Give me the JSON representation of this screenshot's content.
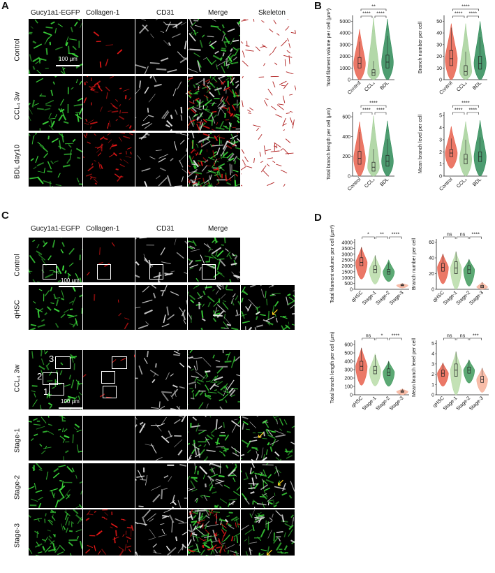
{
  "panel_labels": {
    "a": "A",
    "b": "B",
    "c": "C",
    "d": "D"
  },
  "panel_a": {
    "columns": [
      "Gucy1a1-EGFP",
      "Collagen-1",
      "CD31",
      "Merge",
      "Skeleton"
    ],
    "rows": [
      "Control",
      "CCL₄ 3w",
      "BDL day10"
    ],
    "scale_bar": "100 μm"
  },
  "panel_c": {
    "columns": [
      "Gucy1a1-EGFP",
      "Collagen-1",
      "CD31",
      "Merge"
    ],
    "rows": [
      "Control",
      "qHSC",
      "CCL₄ 3w",
      "Stage-1",
      "Stage-2",
      "Stage-3"
    ],
    "scale_bar": "100 μm",
    "ccl4_box_labels": [
      "3",
      "2",
      "1"
    ]
  },
  "colors": {
    "control": "#e8604c",
    "ccl4": "#a6d19a",
    "bdl": "#2e8b57",
    "qhsc": "#e8604c",
    "stage1": "#b8dca8",
    "stage2": "#3f9a5c",
    "stage3": "#f6b19a",
    "egfp": "#3bd93b",
    "collagen": "#e81818",
    "cd31": "#e8e8e8"
  },
  "chart_data": [
    {
      "type": "violin",
      "panel": "B",
      "ylabel": "Total filament volume per cell (μm³)",
      "categories": [
        "Control",
        "CCL₄",
        "BDL"
      ],
      "yticks": [
        0,
        1000,
        2000,
        3000,
        4000,
        5000
      ],
      "ylim": [
        0,
        5500
      ],
      "medians": [
        1400,
        600,
        1500
      ],
      "q1": [
        1000,
        350,
        1000
      ],
      "q3": [
        1900,
        850,
        2100
      ],
      "max": [
        4300,
        5300,
        5200
      ],
      "significance": [
        {
          "pair": [
            "Control",
            "BDL"
          ],
          "label": "**"
        },
        {
          "pair": [
            "Control",
            "CCL₄"
          ],
          "label": "****"
        },
        {
          "pair": [
            "CCL₄",
            "BDL"
          ],
          "label": "****"
        }
      ]
    },
    {
      "type": "violin",
      "panel": "B",
      "ylabel": "Branch number per cell",
      "categories": [
        "Control",
        "CCL₄",
        "BDL"
      ],
      "yticks": [
        0,
        10,
        20,
        30,
        40,
        50
      ],
      "ylim": [
        0,
        55
      ],
      "medians": [
        18,
        7,
        14
      ],
      "q1": [
        12,
        4,
        9
      ],
      "q3": [
        25,
        12,
        20
      ],
      "max": [
        48,
        48,
        50
      ],
      "significance": [
        {
          "pair": [
            "Control",
            "BDL"
          ],
          "label": "****"
        },
        {
          "pair": [
            "Control",
            "CCL₄"
          ],
          "label": "****"
        },
        {
          "pair": [
            "CCL₄",
            "BDL"
          ],
          "label": "****"
        }
      ]
    },
    {
      "type": "violin",
      "panel": "B",
      "ylabel": "Total branch length per cell (μm)",
      "categories": [
        "Control",
        "CCL₄",
        "BDL"
      ],
      "yticks": [
        0,
        200,
        400,
        600
      ],
      "ylim": [
        0,
        650
      ],
      "medians": [
        180,
        90,
        150
      ],
      "q1": [
        120,
        50,
        100
      ],
      "q3": [
        250,
        140,
        210
      ],
      "max": [
        550,
        610,
        560
      ],
      "significance": [
        {
          "pair": [
            "Control",
            "BDL"
          ],
          "label": "****"
        },
        {
          "pair": [
            "Control",
            "CCL₄"
          ],
          "label": "****"
        },
        {
          "pair": [
            "CCL₄",
            "BDL"
          ],
          "label": "****"
        }
      ]
    },
    {
      "type": "violin",
      "panel": "B",
      "ylabel": "Mean branch level per cell",
      "categories": [
        "Control",
        "CCL₄",
        "BDL"
      ],
      "yticks": [
        0,
        1,
        2,
        3,
        4,
        5
      ],
      "ylim": [
        0,
        5.3
      ],
      "medians": [
        1.9,
        1.4,
        1.6
      ],
      "q1": [
        1.6,
        1.0,
        1.2
      ],
      "q3": [
        2.2,
        1.8,
        2.0
      ],
      "max": [
        4.1,
        4.5,
        4.6
      ],
      "significance": [
        {
          "pair": [
            "Control",
            "BDL"
          ],
          "label": "****"
        },
        {
          "pair": [
            "Control",
            "CCL₄"
          ],
          "label": "****"
        },
        {
          "pair": [
            "CCL₄",
            "BDL"
          ],
          "label": "****"
        }
      ]
    },
    {
      "type": "violin",
      "panel": "D",
      "ylabel": "Total filament volume per cell (μm³)",
      "categories": [
        "qHSC",
        "Stage-1",
        "Stage-2",
        "Stage-3"
      ],
      "yticks": [
        0,
        500,
        1000,
        1500,
        2000,
        2500,
        3000,
        3500,
        4000
      ],
      "ylim": [
        0,
        4300
      ],
      "medians": [
        2300,
        1700,
        1500,
        350
      ],
      "q1": [
        2000,
        1400,
        1300,
        300
      ],
      "q3": [
        2700,
        2000,
        1700,
        420
      ],
      "max": [
        3600,
        2900,
        2500,
        500
      ],
      "significance": [
        {
          "pair": [
            "qHSC",
            "Stage-1"
          ],
          "label": "*"
        },
        {
          "pair": [
            "Stage-1",
            "Stage-2"
          ],
          "label": "**"
        },
        {
          "pair": [
            "Stage-2",
            "Stage-3"
          ],
          "label": "****"
        }
      ]
    },
    {
      "type": "violin",
      "panel": "D",
      "ylabel": "Branch number per cell",
      "categories": [
        "qHSC",
        "Stage-1",
        "Stage-2",
        "Stage-3"
      ],
      "yticks": [
        0,
        20,
        40,
        60
      ],
      "ylim": [
        0,
        64
      ],
      "medians": [
        28,
        27,
        25,
        3
      ],
      "q1": [
        23,
        20,
        20,
        2
      ],
      "q3": [
        33,
        35,
        30,
        5
      ],
      "max": [
        45,
        48,
        38,
        9
      ],
      "significance": [
        {
          "pair": [
            "qHSC",
            "Stage-1"
          ],
          "label": "ns"
        },
        {
          "pair": [
            "Stage-1",
            "Stage-2"
          ],
          "label": "ns"
        },
        {
          "pair": [
            "Stage-2",
            "Stage-3"
          ],
          "label": "****"
        }
      ]
    },
    {
      "type": "violin",
      "panel": "D",
      "ylabel": "Total branch length per cell (μm)",
      "categories": [
        "qHSC",
        "Stage-1",
        "Stage-2",
        "Stage-3"
      ],
      "yticks": [
        0,
        100,
        200,
        300,
        400,
        500,
        600
      ],
      "ylim": [
        0,
        650
      ],
      "medians": [
        340,
        290,
        270,
        40
      ],
      "q1": [
        290,
        250,
        230,
        30
      ],
      "q3": [
        400,
        340,
        310,
        50
      ],
      "max": [
        560,
        490,
        400,
        70
      ],
      "significance": [
        {
          "pair": [
            "qHSC",
            "Stage-1"
          ],
          "label": "ns"
        },
        {
          "pair": [
            "Stage-1",
            "Stage-2"
          ],
          "label": "*"
        },
        {
          "pair": [
            "Stage-2",
            "Stage-3"
          ],
          "label": "****"
        }
      ]
    },
    {
      "type": "violin",
      "panel": "D",
      "ylabel": "Mean branch level per cell",
      "categories": [
        "qHSC",
        "Stage-1",
        "Stage-2",
        "Stage-3"
      ],
      "yticks": [
        0,
        1,
        2,
        3,
        4,
        5
      ],
      "ylim": [
        0,
        5.3
      ],
      "medians": [
        2.1,
        2.4,
        2.4,
        1.5
      ],
      "q1": [
        1.8,
        1.8,
        2.1,
        1.2
      ],
      "q3": [
        2.4,
        3.0,
        2.7,
        1.8
      ],
      "max": [
        3.1,
        4.2,
        3.4,
        2.6
      ],
      "significance": [
        {
          "pair": [
            "qHSC",
            "Stage-1"
          ],
          "label": "ns"
        },
        {
          "pair": [
            "Stage-1",
            "Stage-2"
          ],
          "label": "ns"
        },
        {
          "pair": [
            "Stage-2",
            "Stage-3"
          ],
          "label": "***"
        }
      ]
    }
  ]
}
